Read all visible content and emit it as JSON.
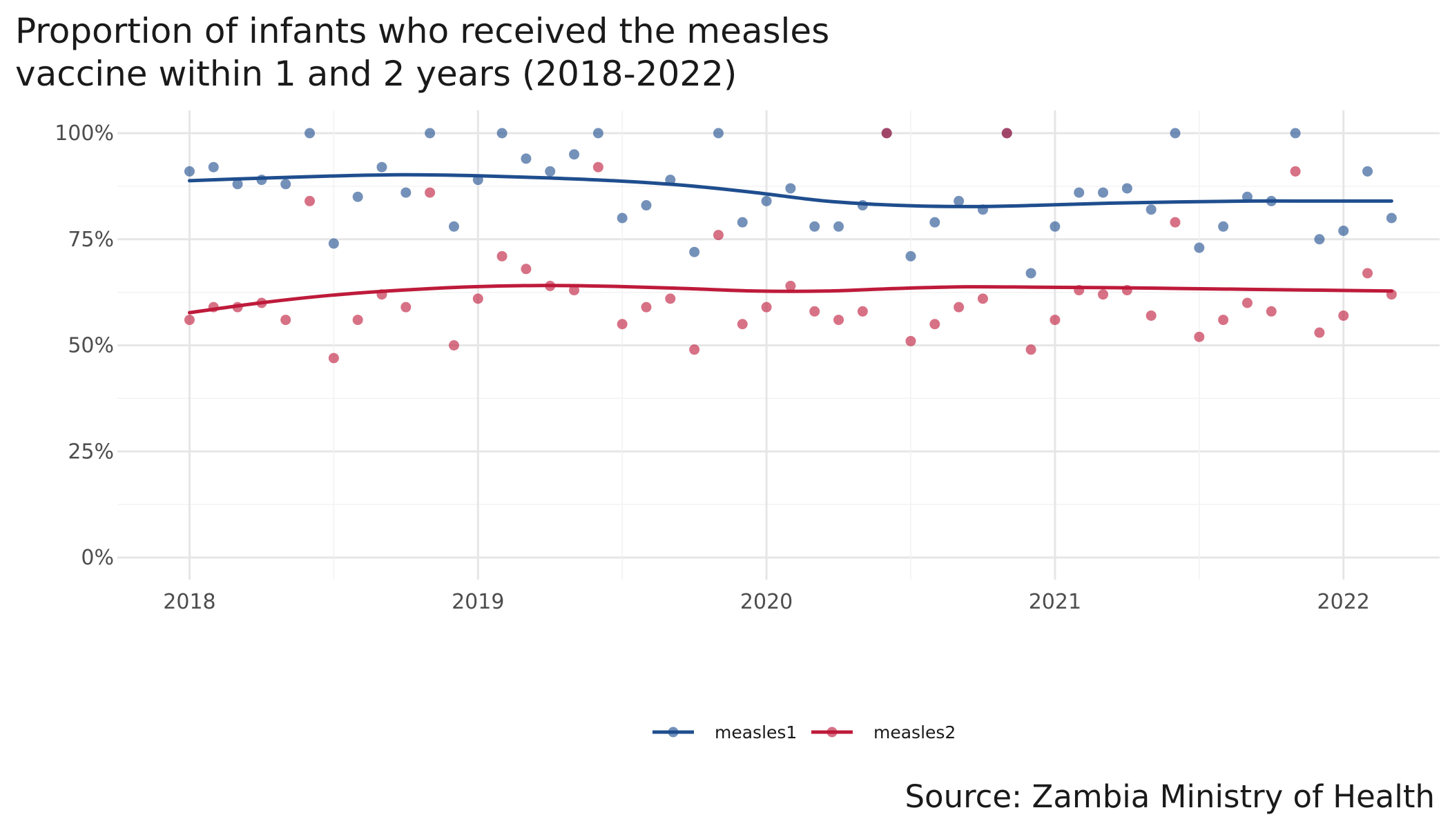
{
  "chart_data": {
    "type": "scatter",
    "title_lines": [
      "Proportion of infants who received the measles",
      "vaccine within 1 and 2 years (2018-2022)"
    ],
    "caption": "Source: Zambia Ministry of Health",
    "xlabel": "",
    "ylabel": "",
    "x_ticks": [
      "2018",
      "2019",
      "2020",
      "2021",
      "2022"
    ],
    "y_ticks": [
      "0%",
      "25%",
      "50%",
      "75%",
      "100%"
    ],
    "xlim": [
      "2017-10",
      "2022-05"
    ],
    "ylim": [
      0,
      1
    ],
    "grid": true,
    "legend_position": "bottom",
    "series": [
      {
        "name": "measles1",
        "color": "#1F4E8E",
        "x": [
          "2018-01",
          "2018-02",
          "2018-03",
          "2018-04",
          "2018-05",
          "2018-06",
          "2018-07",
          "2018-08",
          "2018-09",
          "2018-10",
          "2018-11",
          "2018-12",
          "2019-01",
          "2019-02",
          "2019-03",
          "2019-04",
          "2019-05",
          "2019-06",
          "2019-07",
          "2019-08",
          "2019-09",
          "2019-10",
          "2019-11",
          "2019-12",
          "2020-01",
          "2020-02",
          "2020-03",
          "2020-04",
          "2020-05",
          "2020-06",
          "2020-07",
          "2020-08",
          "2020-09",
          "2020-10",
          "2020-11",
          "2020-12",
          "2021-01",
          "2021-02",
          "2021-03",
          "2021-04",
          "2021-05",
          "2021-06",
          "2021-07",
          "2021-08",
          "2021-09",
          "2021-10",
          "2021-11",
          "2021-12",
          "2022-01",
          "2022-02",
          "2022-03"
        ],
        "values": [
          0.91,
          0.92,
          0.88,
          0.89,
          0.88,
          1.0,
          0.74,
          0.85,
          0.92,
          0.86,
          1.0,
          0.78,
          0.89,
          1.0,
          0.94,
          0.91,
          0.95,
          1.0,
          0.8,
          0.83,
          0.89,
          0.72,
          1.0,
          0.79,
          0.84,
          0.87,
          0.78,
          0.78,
          0.83,
          1.0,
          0.71,
          0.79,
          0.84,
          0.82,
          1.0,
          0.67,
          0.78,
          0.86,
          0.86,
          0.87,
          0.82,
          1.0,
          0.73,
          0.78,
          0.85,
          0.84,
          1.0,
          0.75,
          0.77,
          0.91,
          0.8
        ],
        "trend": [
          0.888,
          0.894,
          0.899,
          0.902,
          0.9,
          0.895,
          0.888,
          0.877,
          0.86,
          0.84,
          0.83,
          0.827,
          0.83,
          0.835,
          0.838,
          0.84,
          0.84,
          0.84
        ]
      },
      {
        "name": "measles2",
        "color": "#BE1A3A",
        "x": [
          "2018-01",
          "2018-02",
          "2018-03",
          "2018-04",
          "2018-05",
          "2018-06",
          "2018-07",
          "2018-08",
          "2018-09",
          "2018-10",
          "2018-11",
          "2018-12",
          "2019-01",
          "2019-02",
          "2019-03",
          "2019-04",
          "2019-05",
          "2019-06",
          "2019-07",
          "2019-08",
          "2019-09",
          "2019-10",
          "2019-11",
          "2019-12",
          "2020-01",
          "2020-02",
          "2020-03",
          "2020-04",
          "2020-05",
          "2020-06",
          "2020-07",
          "2020-08",
          "2020-09",
          "2020-10",
          "2020-11",
          "2020-12",
          "2021-01",
          "2021-02",
          "2021-03",
          "2021-04",
          "2021-05",
          "2021-06",
          "2021-07",
          "2021-08",
          "2021-09",
          "2021-10",
          "2021-11",
          "2021-12",
          "2022-01",
          "2022-02",
          "2022-03"
        ],
        "values": [
          0.56,
          0.59,
          0.59,
          0.6,
          0.56,
          0.84,
          0.47,
          0.56,
          0.62,
          0.59,
          0.86,
          0.5,
          0.61,
          0.71,
          0.68,
          0.64,
          0.63,
          0.92,
          0.55,
          0.59,
          0.61,
          0.49,
          0.76,
          0.55,
          0.59,
          0.64,
          0.58,
          0.56,
          0.58,
          1.0,
          0.51,
          0.55,
          0.59,
          0.61,
          1.0,
          0.49,
          0.56,
          0.63,
          0.62,
          0.63,
          0.57,
          0.79,
          0.52,
          0.56,
          0.6,
          0.58,
          0.91,
          0.53,
          0.57,
          0.67,
          0.62
        ],
        "trend": [
          0.577,
          0.6,
          0.618,
          0.63,
          0.638,
          0.641,
          0.639,
          0.634,
          0.628,
          0.628,
          0.634,
          0.638,
          0.637,
          0.636,
          0.634,
          0.632,
          0.63,
          0.628
        ]
      }
    ]
  }
}
